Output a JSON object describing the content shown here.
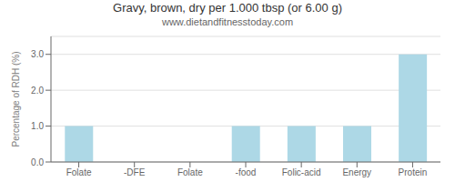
{
  "chart_data": {
    "type": "bar",
    "title": "Gravy, brown, dry per 1.000 tbsp (or 6.00 g)",
    "subtitle": "www.dietandfitnesstoday.com",
    "categories": [
      "Folate",
      "-DFE",
      "Folate",
      "-food",
      "Folic-acid",
      "Energy",
      "Protein"
    ],
    "values": [
      1.0,
      0.0,
      0.0,
      1.0,
      1.0,
      1.0,
      3.0
    ],
    "color": "#add8e6",
    "ylabel": "Percentage of RDH (%)",
    "ylim": [
      0.0,
      3.5
    ],
    "yticks": [
      {
        "value": 0.0,
        "label": "0.0"
      },
      {
        "value": 1.0,
        "label": "1.0"
      },
      {
        "value": 2.0,
        "label": "2.0"
      },
      {
        "value": 3.0,
        "label": "3.0"
      }
    ],
    "grid": true
  }
}
